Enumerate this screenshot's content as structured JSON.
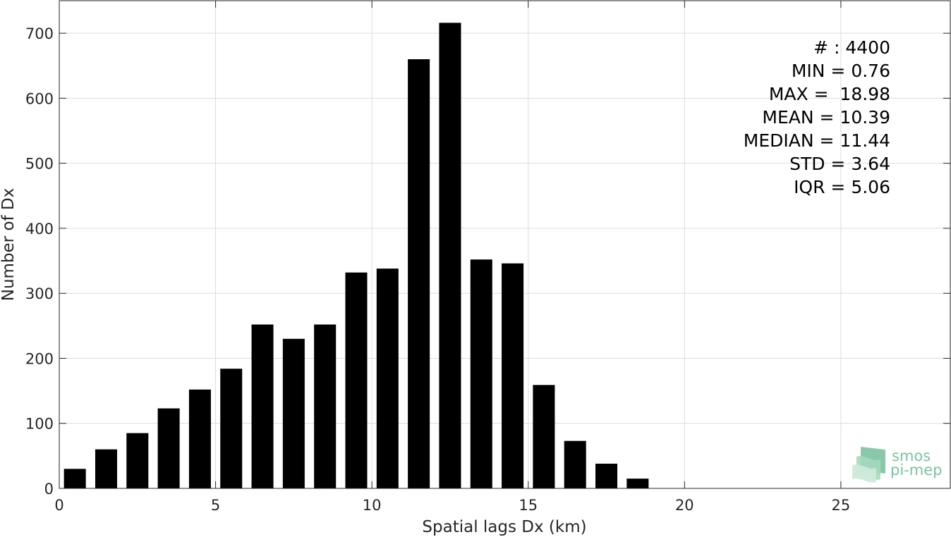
{
  "chart_data": {
    "type": "bar",
    "title": "",
    "xlabel": "Spatial lags Dx (km)",
    "ylabel": "Number of Dx",
    "xlim": [
      0,
      28.5
    ],
    "ylim": [
      0,
      750
    ],
    "x_ticks": [
      0,
      5,
      10,
      15,
      20,
      25
    ],
    "y_ticks": [
      0,
      100,
      200,
      300,
      400,
      500,
      600,
      700
    ],
    "grid": true,
    "bar_color": "#000000",
    "bar_width": 0.7,
    "x": [
      0.5,
      1.5,
      2.5,
      3.5,
      4.5,
      5.5,
      6.5,
      7.5,
      8.5,
      9.5,
      10.5,
      11.5,
      12.5,
      13.5,
      14.5,
      15.5,
      16.5,
      17.5,
      18.5
    ],
    "values": [
      30,
      60,
      85,
      123,
      152,
      184,
      252,
      230,
      252,
      332,
      338,
      660,
      716,
      352,
      346,
      159,
      73,
      38,
      15
    ],
    "annotations": [
      "# : 4400",
      "MIN = 0.76",
      "MAX =  18.98",
      "MEAN = 10.39",
      "MEDIAN = 11.44",
      "STD = 3.64",
      "IQR = 5.06"
    ]
  },
  "logo": {
    "line1": "smos",
    "line2": "pi-mep",
    "color": "#7cc3a0"
  }
}
